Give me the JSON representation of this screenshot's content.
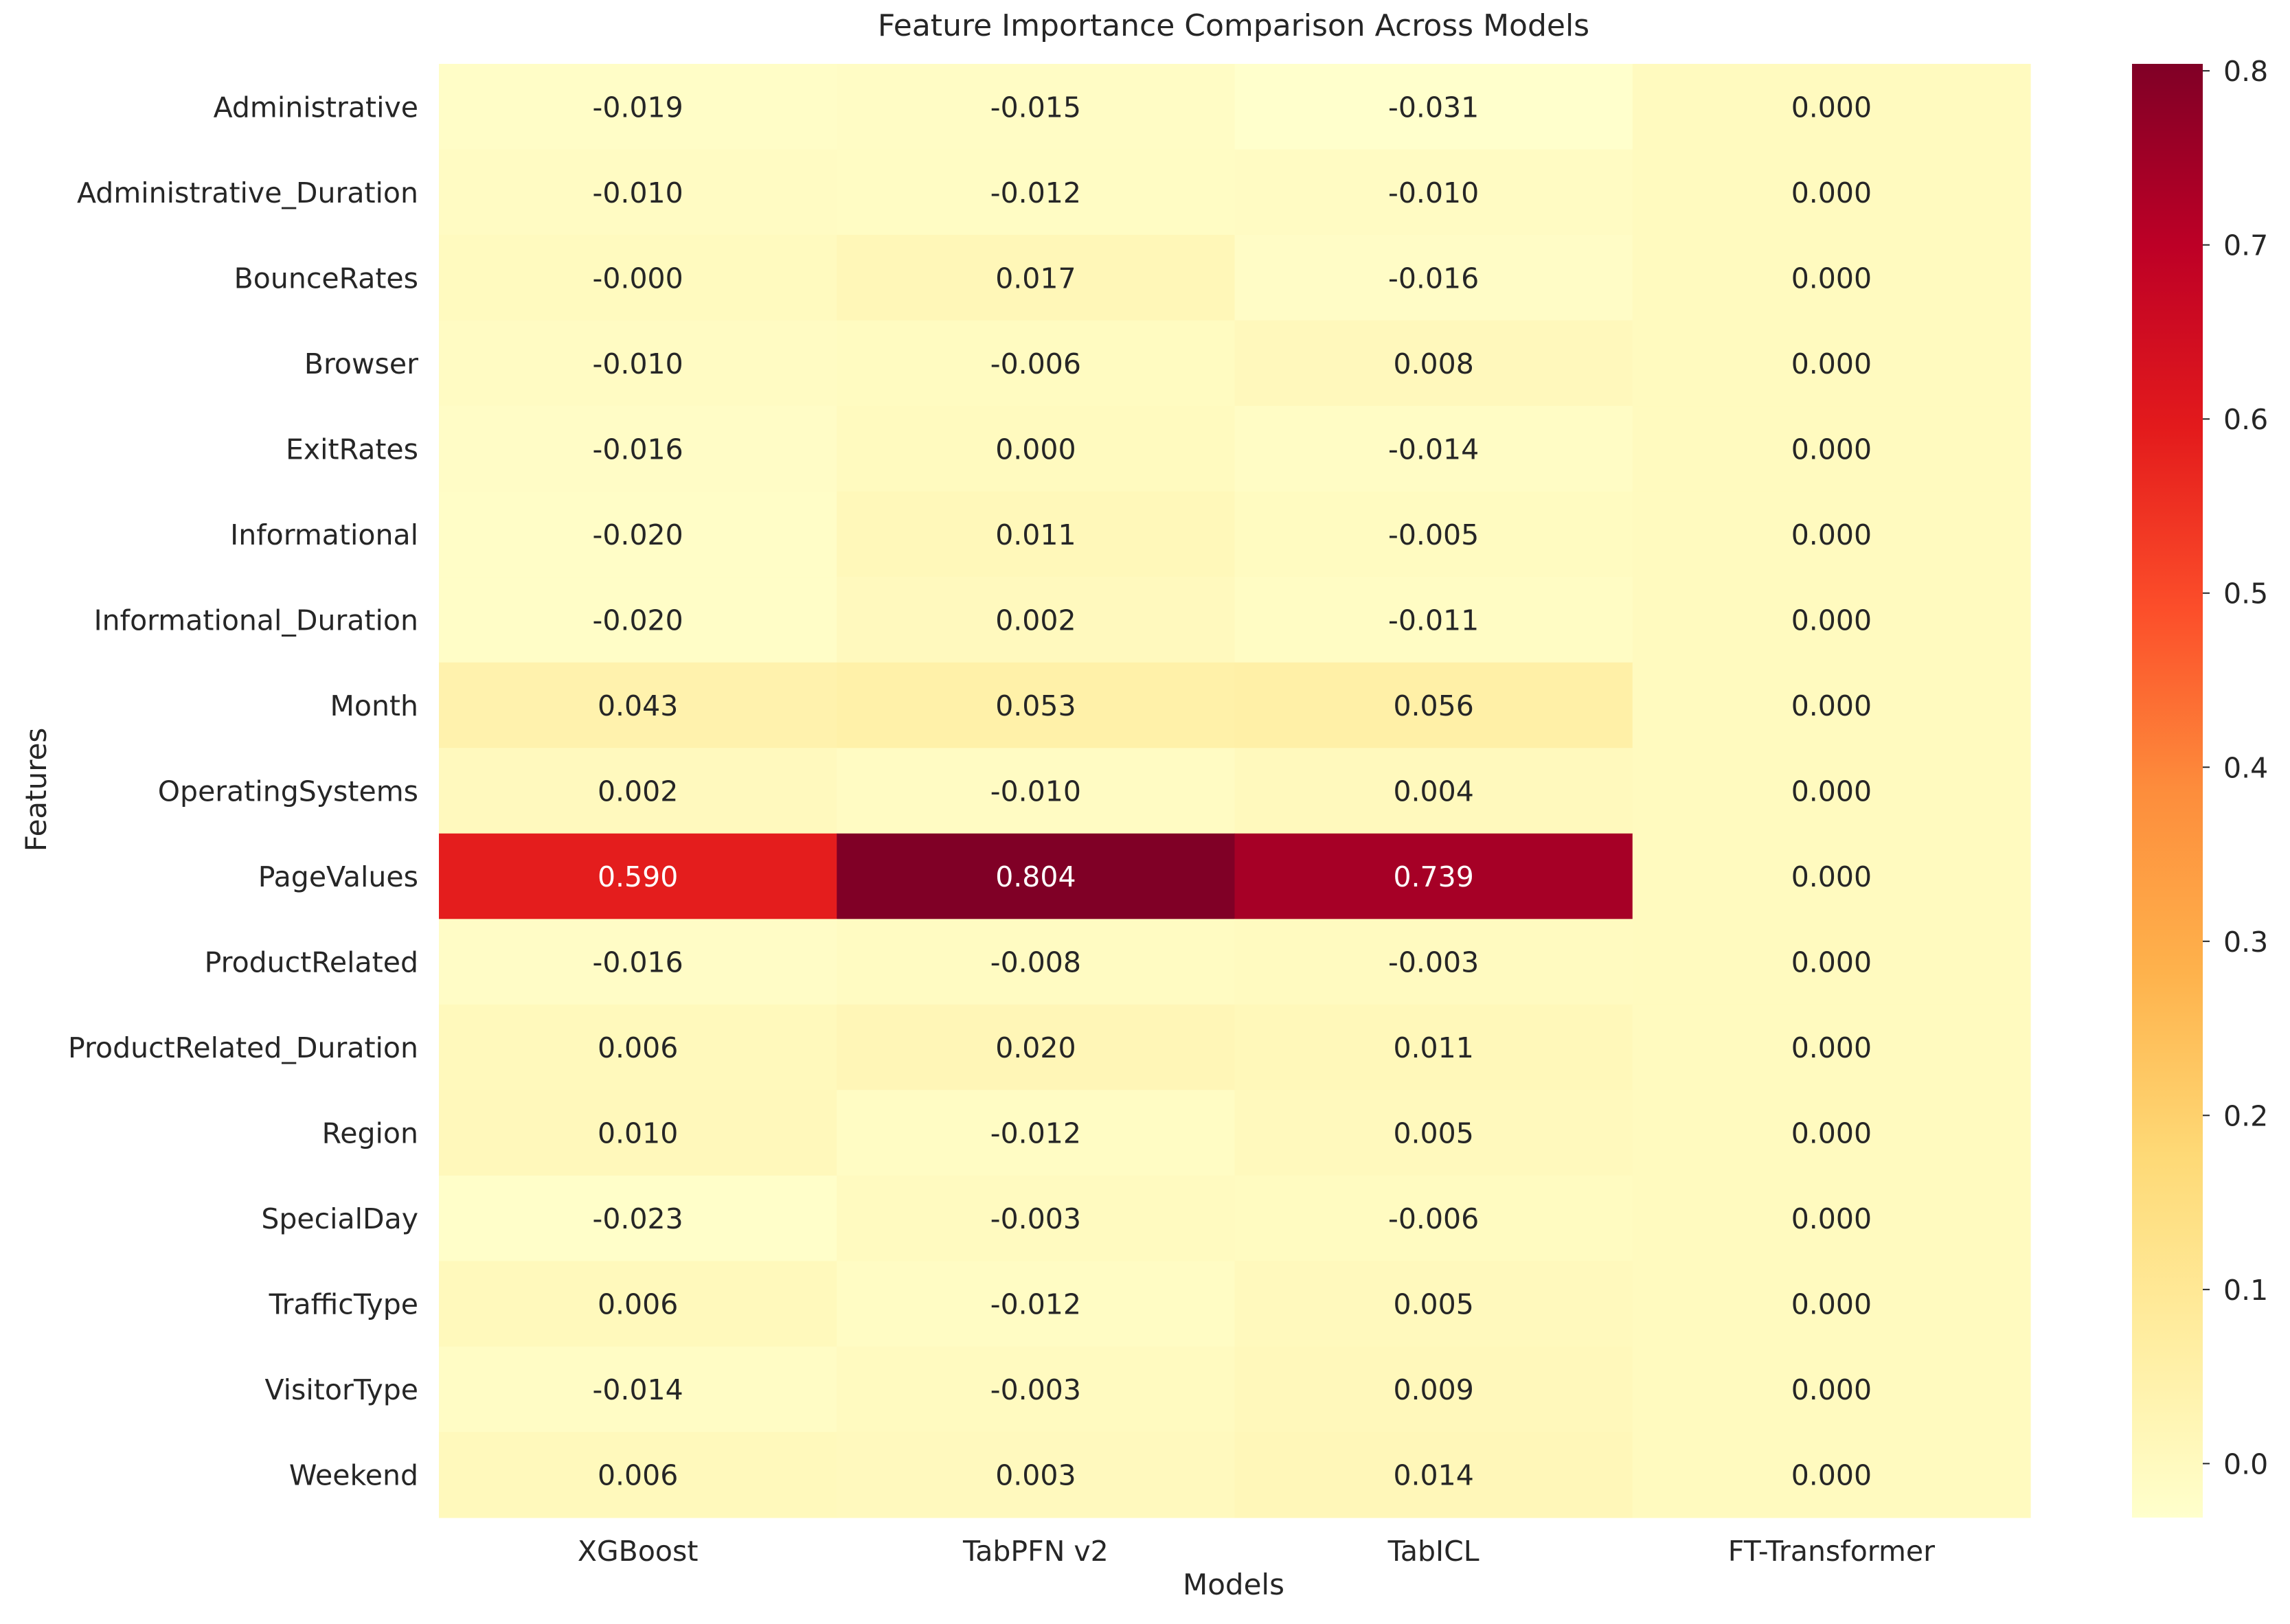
{
  "chart_data": {
    "type": "heatmap",
    "title": "Feature Importance Comparison Across Models",
    "xlabel": "Models",
    "ylabel": "Features",
    "columns": [
      "XGBoost",
      "TabPFN v2",
      "TabICL",
      "FT-Transformer"
    ],
    "rows": [
      "Administrative",
      "Administrative_Duration",
      "BounceRates",
      "Browser",
      "ExitRates",
      "Informational",
      "Informational_Duration",
      "Month",
      "OperatingSystems",
      "PageValues",
      "ProductRelated",
      "ProductRelated_Duration",
      "Region",
      "SpecialDay",
      "TrafficType",
      "VisitorType",
      "Weekend"
    ],
    "values": [
      [
        -0.019,
        -0.015,
        -0.031,
        0.0
      ],
      [
        -0.01,
        -0.012,
        -0.01,
        0.0
      ],
      [
        -0.0,
        0.017,
        -0.016,
        0.0
      ],
      [
        -0.01,
        -0.006,
        0.008,
        0.0
      ],
      [
        -0.016,
        0.0,
        -0.014,
        0.0
      ],
      [
        -0.02,
        0.011,
        -0.005,
        0.0
      ],
      [
        -0.02,
        0.002,
        -0.011,
        0.0
      ],
      [
        0.043,
        0.053,
        0.056,
        0.0
      ],
      [
        0.002,
        -0.01,
        0.004,
        0.0
      ],
      [
        0.59,
        0.804,
        0.739,
        0.0
      ],
      [
        -0.016,
        -0.008,
        -0.003,
        0.0
      ],
      [
        0.006,
        0.02,
        0.011,
        0.0
      ],
      [
        0.01,
        -0.012,
        0.005,
        0.0
      ],
      [
        -0.023,
        -0.003,
        -0.006,
        0.0
      ],
      [
        0.006,
        -0.012,
        0.005,
        0.0
      ],
      [
        -0.014,
        -0.003,
        0.009,
        0.0
      ],
      [
        0.006,
        0.003,
        0.014,
        0.0
      ]
    ],
    "labels": [
      [
        "-0.019",
        "-0.015",
        "-0.031",
        "0.000"
      ],
      [
        "-0.010",
        "-0.012",
        "-0.010",
        "0.000"
      ],
      [
        "-0.000",
        "0.017",
        "-0.016",
        "0.000"
      ],
      [
        "-0.010",
        "-0.006",
        "0.008",
        "0.000"
      ],
      [
        "-0.016",
        "0.000",
        "-0.014",
        "0.000"
      ],
      [
        "-0.020",
        "0.011",
        "-0.005",
        "0.000"
      ],
      [
        "-0.020",
        "0.002",
        "-0.011",
        "0.000"
      ],
      [
        "0.043",
        "0.053",
        "0.056",
        "0.000"
      ],
      [
        "0.002",
        "-0.010",
        "0.004",
        "0.000"
      ],
      [
        "0.590",
        "0.804",
        "0.739",
        "0.000"
      ],
      [
        "-0.016",
        "-0.008",
        "-0.003",
        "0.000"
      ],
      [
        "0.006",
        "0.020",
        "0.011",
        "0.000"
      ],
      [
        "0.010",
        "-0.012",
        "0.005",
        "0.000"
      ],
      [
        "-0.023",
        "-0.003",
        "-0.006",
        "0.000"
      ],
      [
        "0.006",
        "-0.012",
        "0.005",
        "0.000"
      ],
      [
        "-0.014",
        "-0.003",
        "0.009",
        "0.000"
      ],
      [
        "0.006",
        "0.003",
        "0.014",
        "0.000"
      ]
    ],
    "colormap": "YlOrRd",
    "colormap_stops": [
      "#ffffcc",
      "#ffeda0",
      "#fed976",
      "#feb24c",
      "#fd8d3c",
      "#fc4e2a",
      "#e31a1c",
      "#bd0026",
      "#800026"
    ],
    "vmin": -0.031,
    "vmax": 0.804,
    "colorbar_ticks": [
      "0.0",
      "0.1",
      "0.2",
      "0.3",
      "0.4",
      "0.5",
      "0.6",
      "0.7",
      "0.8"
    ],
    "colorbar_tick_values": [
      0.0,
      0.1,
      0.2,
      0.3,
      0.4,
      0.5,
      0.6,
      0.7,
      0.8
    ],
    "grid": false,
    "legend": "colorbar-right"
  }
}
